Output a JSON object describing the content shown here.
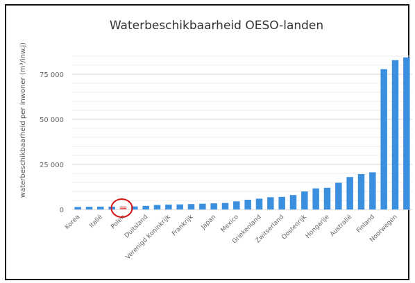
{
  "chart_data": {
    "type": "bar",
    "title": "Waterbeschikbaarheid OESO-landen",
    "xlabel": "",
    "ylabel": "waterbeschikbaarheid per inwoner (m³/inw.j)",
    "ylim": [
      0,
      90000
    ],
    "yticks": [
      0,
      25000,
      50000,
      75000
    ],
    "ytick_labels": [
      "0",
      "25 000",
      "50 000",
      "75 000"
    ],
    "grid": true,
    "bar_color": "#3a8fde",
    "highlight_color": "#e02020",
    "categories": [
      "Korea",
      "",
      "Italië",
      "",
      "Polen",
      "",
      "Duitsland",
      "",
      "Verenigd Koninkrijk",
      "",
      "Frankrijk",
      "",
      "Japan",
      "",
      "Mexico",
      "",
      "Griekenland",
      "",
      "Zwitserland",
      "",
      "Oostenrijk",
      "",
      "Hongarije",
      "",
      "Australië",
      "",
      "Finland",
      "",
      "Noorwegen",
      ""
    ],
    "values": [
      1400,
      1500,
      1600,
      1600,
      1600,
      1700,
      2000,
      2500,
      2700,
      2800,
      3000,
      3200,
      3400,
      3600,
      4500,
      5400,
      6000,
      6800,
      7000,
      8000,
      10000,
      11700,
      12000,
      14800,
      18000,
      19600,
      20600,
      77800,
      82800,
      84300
    ],
    "highlight": {
      "category_index": 4,
      "style": "dashed",
      "annotation": "red-circle"
    }
  }
}
